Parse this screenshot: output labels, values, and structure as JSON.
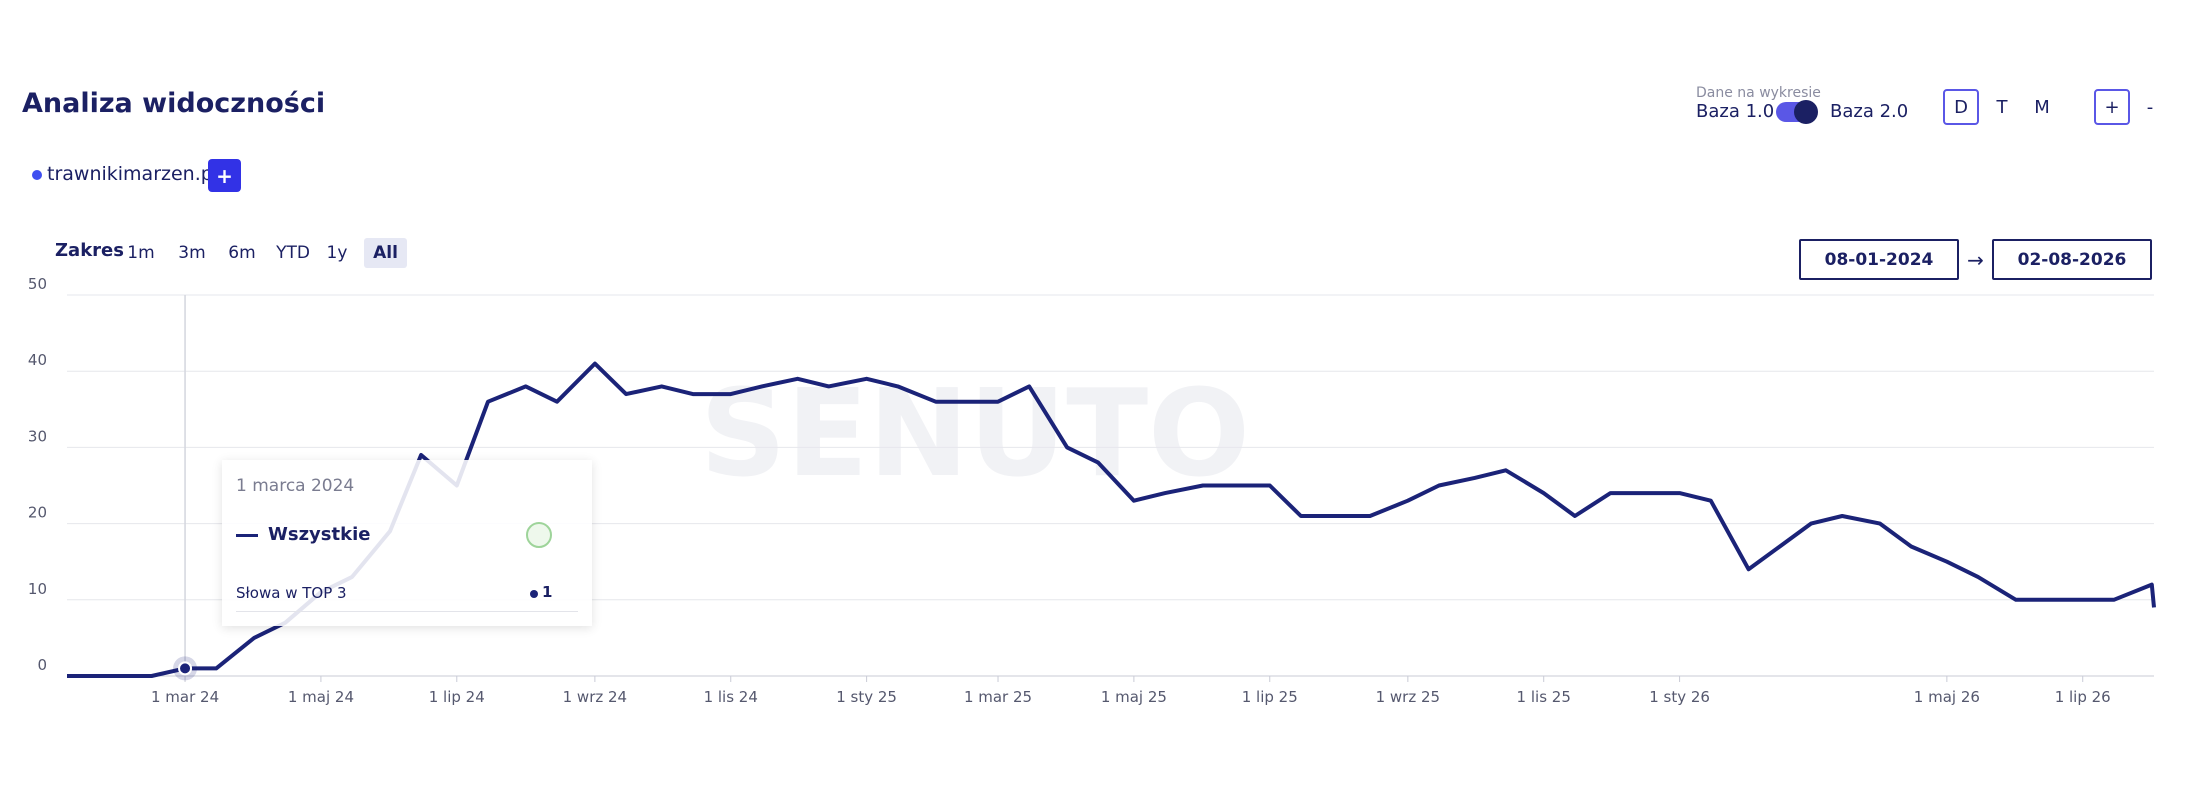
{
  "header": {
    "title": "Analiza widoczności"
  },
  "controls": {
    "data_label": "Dane na wykresie",
    "base_left": "Baza 1.0",
    "base_right": "Baza 2.0",
    "granularity": [
      "D",
      "T",
      "M"
    ],
    "zoom_in": "+",
    "zoom_out": "-",
    "domain": "trawnikimarzen.pl",
    "add_domain": "+",
    "range_label": "Zakres",
    "ranges": [
      "1m",
      "3m",
      "6m",
      "YTD",
      "1y",
      "All"
    ],
    "date_from": "08-01-2024",
    "date_arrow": "→",
    "date_to": "02-08-2026"
  },
  "chart_data": {
    "type": "line",
    "watermark": "SENUTO",
    "grid": true,
    "x": [
      "2024-01-08",
      "2024-01-15",
      "2024-02-01",
      "2024-02-15",
      "2024-03-01",
      "2024-03-15",
      "2024-04-01",
      "2024-04-15",
      "2024-05-01",
      "2024-05-15",
      "2024-06-01",
      "2024-06-15",
      "2024-07-01",
      "2024-07-15",
      "2024-08-01",
      "2024-08-15",
      "2024-09-01",
      "2024-09-15",
      "2024-10-01",
      "2024-10-15",
      "2024-11-01",
      "2024-11-15",
      "2024-12-01",
      "2024-12-15",
      "2025-01-01",
      "2025-01-15",
      "2025-02-01",
      "2025-02-15",
      "2025-03-01",
      "2025-03-15",
      "2025-04-01",
      "2025-04-15",
      "2025-05-01",
      "2025-05-15",
      "2025-06-01",
      "2025-06-15",
      "2025-07-01",
      "2025-07-15",
      "2025-08-01",
      "2025-08-15",
      "2025-09-01",
      "2025-09-15",
      "2025-10-01",
      "2025-10-15",
      "2025-11-01",
      "2025-11-15",
      "2025-12-01",
      "2025-12-15",
      "2026-01-01",
      "2026-01-15",
      "2026-02-01",
      "2026-02-15",
      "2026-03-01",
      "2026-03-15",
      "2026-04-01",
      "2026-04-15",
      "2026-05-01",
      "2026-05-15",
      "2026-06-01",
      "2026-06-15",
      "2026-07-01",
      "2026-07-15",
      "2026-08-01",
      "2026-08-02"
    ],
    "series": [
      {
        "name": "Wszystkie",
        "color": "#1b2378",
        "values": [
          0,
          0,
          0,
          0,
          1,
          1,
          5,
          7,
          11,
          13,
          19,
          29,
          25,
          36,
          38,
          36,
          41,
          37,
          38,
          37,
          37,
          38,
          39,
          38,
          39,
          38,
          36,
          36,
          36,
          38,
          30,
          28,
          23,
          24,
          25,
          25,
          25,
          21,
          21,
          21,
          23,
          25,
          26,
          27,
          24,
          21,
          24,
          24,
          24,
          23,
          14,
          17,
          20,
          21,
          20,
          17,
          15,
          13,
          10,
          10,
          10,
          10,
          12,
          9
        ]
      }
    ],
    "xlim": [
      "2024-01-08",
      "2026-08-02"
    ],
    "xticks": [
      {
        "value": "2024-03-01",
        "label": "1 mar 24"
      },
      {
        "value": "2024-05-01",
        "label": "1 maj 24"
      },
      {
        "value": "2024-07-01",
        "label": "1 lip 24"
      },
      {
        "value": "2024-09-01",
        "label": "1 wrz 24"
      },
      {
        "value": "2024-11-01",
        "label": "1 lis 24"
      },
      {
        "value": "2025-01-01",
        "label": "1 sty 25"
      },
      {
        "value": "2025-03-01",
        "label": "1 mar 25"
      },
      {
        "value": "2025-05-01",
        "label": "1 maj 25"
      },
      {
        "value": "2025-07-01",
        "label": "1 lip 25"
      },
      {
        "value": "2025-09-01",
        "label": "1 wrz 25"
      },
      {
        "value": "2025-11-01",
        "label": "1 lis 25"
      },
      {
        "value": "2026-01-01",
        "label": "1 sty 26"
      },
      {
        "value": "2026-05-01",
        "label": "1 maj 26"
      },
      {
        "value": "2026-07-01",
        "label": "1 lip 26"
      }
    ],
    "ylim": [
      0,
      50
    ],
    "yticks": [
      0,
      10,
      20,
      30,
      40,
      50
    ],
    "tooltip": {
      "date": "1 marca 2024",
      "series": "Wszystkie",
      "metric": "Słowa w TOP 3",
      "value": 1
    }
  }
}
